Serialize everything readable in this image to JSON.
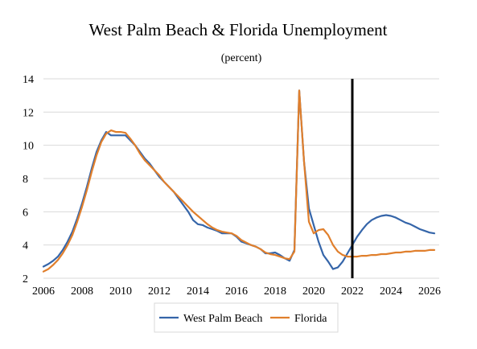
{
  "chart_data": {
    "type": "line",
    "title": "West Palm Beach & Florida Unemployment",
    "subtitle": "(percent)",
    "xlabel": "",
    "ylabel": "",
    "xlim": [
      2006,
      2026.5
    ],
    "ylim": [
      2,
      14
    ],
    "x_ticks": [
      "2006",
      "2008",
      "2010",
      "2012",
      "2014",
      "2016",
      "2018",
      "2020",
      "2022",
      "2024",
      "2026"
    ],
    "y_ticks": [
      "2",
      "4",
      "6",
      "8",
      "10",
      "12",
      "14"
    ],
    "grid": "horizontal",
    "vertical_marker": 2022,
    "legend_position": "bottom-center",
    "series": [
      {
        "name": "West Palm Beach",
        "color": "#3565a9",
        "x": [
          2006.0,
          2006.25,
          2006.5,
          2006.75,
          2007.0,
          2007.25,
          2007.5,
          2007.75,
          2008.0,
          2008.25,
          2008.5,
          2008.75,
          2009.0,
          2009.25,
          2009.5,
          2009.75,
          2010.0,
          2010.25,
          2010.5,
          2010.75,
          2011.0,
          2011.25,
          2011.5,
          2011.75,
          2012.0,
          2012.25,
          2012.5,
          2012.75,
          2013.0,
          2013.25,
          2013.5,
          2013.75,
          2014.0,
          2014.25,
          2014.5,
          2014.75,
          2015.0,
          2015.25,
          2015.5,
          2015.75,
          2016.0,
          2016.25,
          2016.5,
          2016.75,
          2017.0,
          2017.25,
          2017.5,
          2017.75,
          2018.0,
          2018.25,
          2018.5,
          2018.75,
          2019.0,
          2019.25,
          2019.5,
          2019.75,
          2020.0,
          2020.25,
          2020.5,
          2020.75,
          2021.0,
          2021.25,
          2021.5,
          2021.75,
          2022.0,
          2022.25,
          2022.5,
          2022.75,
          2023.0,
          2023.25,
          2023.5,
          2023.75,
          2024.0,
          2024.25,
          2024.5,
          2024.75,
          2025.0,
          2025.25,
          2025.5,
          2025.75,
          2026.0,
          2026.25
        ],
        "values": [
          2.7,
          2.85,
          3.05,
          3.3,
          3.7,
          4.2,
          4.8,
          5.6,
          6.5,
          7.5,
          8.6,
          9.6,
          10.3,
          10.8,
          10.6,
          10.6,
          10.6,
          10.6,
          10.3,
          10.0,
          9.6,
          9.2,
          8.9,
          8.5,
          8.1,
          7.8,
          7.5,
          7.2,
          6.8,
          6.4,
          6.0,
          5.5,
          5.25,
          5.2,
          5.05,
          4.95,
          4.85,
          4.7,
          4.7,
          4.7,
          4.5,
          4.2,
          4.1,
          4.0,
          3.9,
          3.75,
          3.5,
          3.5,
          3.55,
          3.4,
          3.2,
          3.05,
          3.7,
          13.3,
          9.0,
          6.2,
          5.2,
          4.2,
          3.4,
          3.0,
          2.55,
          2.65,
          3.0,
          3.5,
          4.0,
          4.5,
          4.9,
          5.25,
          5.5,
          5.65,
          5.75,
          5.8,
          5.75,
          5.65,
          5.5,
          5.35,
          5.25,
          5.1,
          4.95,
          4.85,
          4.75,
          4.7
        ]
      },
      {
        "name": "Florida",
        "color": "#e07f2c",
        "x": [
          2006.0,
          2006.25,
          2006.5,
          2006.75,
          2007.0,
          2007.25,
          2007.5,
          2007.75,
          2008.0,
          2008.25,
          2008.5,
          2008.75,
          2009.0,
          2009.25,
          2009.5,
          2009.75,
          2010.0,
          2010.25,
          2010.5,
          2010.75,
          2011.0,
          2011.25,
          2011.5,
          2011.75,
          2012.0,
          2012.25,
          2012.5,
          2012.75,
          2013.0,
          2013.25,
          2013.5,
          2013.75,
          2014.0,
          2014.25,
          2014.5,
          2014.75,
          2015.0,
          2015.25,
          2015.5,
          2015.75,
          2016.0,
          2016.25,
          2016.5,
          2016.75,
          2017.0,
          2017.25,
          2017.5,
          2017.75,
          2018.0,
          2018.25,
          2018.5,
          2018.75,
          2019.0,
          2019.25,
          2019.5,
          2019.75,
          2020.0,
          2020.25,
          2020.5,
          2020.75,
          2021.0,
          2021.25,
          2021.5,
          2021.75,
          2022.0,
          2022.25,
          2022.5,
          2022.75,
          2023.0,
          2023.25,
          2023.5,
          2023.75,
          2024.0,
          2024.25,
          2024.5,
          2024.75,
          2025.0,
          2025.25,
          2025.5,
          2025.75,
          2026.0,
          2026.25
        ],
        "values": [
          2.4,
          2.55,
          2.8,
          3.1,
          3.5,
          4.0,
          4.6,
          5.4,
          6.3,
          7.3,
          8.4,
          9.4,
          10.2,
          10.7,
          10.9,
          10.8,
          10.8,
          10.75,
          10.4,
          10.0,
          9.5,
          9.1,
          8.8,
          8.5,
          8.2,
          7.8,
          7.5,
          7.2,
          6.9,
          6.6,
          6.3,
          6.0,
          5.75,
          5.5,
          5.25,
          5.05,
          4.9,
          4.8,
          4.75,
          4.7,
          4.55,
          4.3,
          4.15,
          4.0,
          3.9,
          3.75,
          3.55,
          3.45,
          3.4,
          3.3,
          3.2,
          3.15,
          3.6,
          13.3,
          9.0,
          5.4,
          4.7,
          4.9,
          4.95,
          4.6,
          4.0,
          3.6,
          3.4,
          3.3,
          3.3,
          3.3,
          3.35,
          3.35,
          3.4,
          3.4,
          3.45,
          3.45,
          3.5,
          3.55,
          3.55,
          3.6,
          3.6,
          3.65,
          3.65,
          3.65,
          3.7,
          3.7
        ]
      }
    ]
  }
}
